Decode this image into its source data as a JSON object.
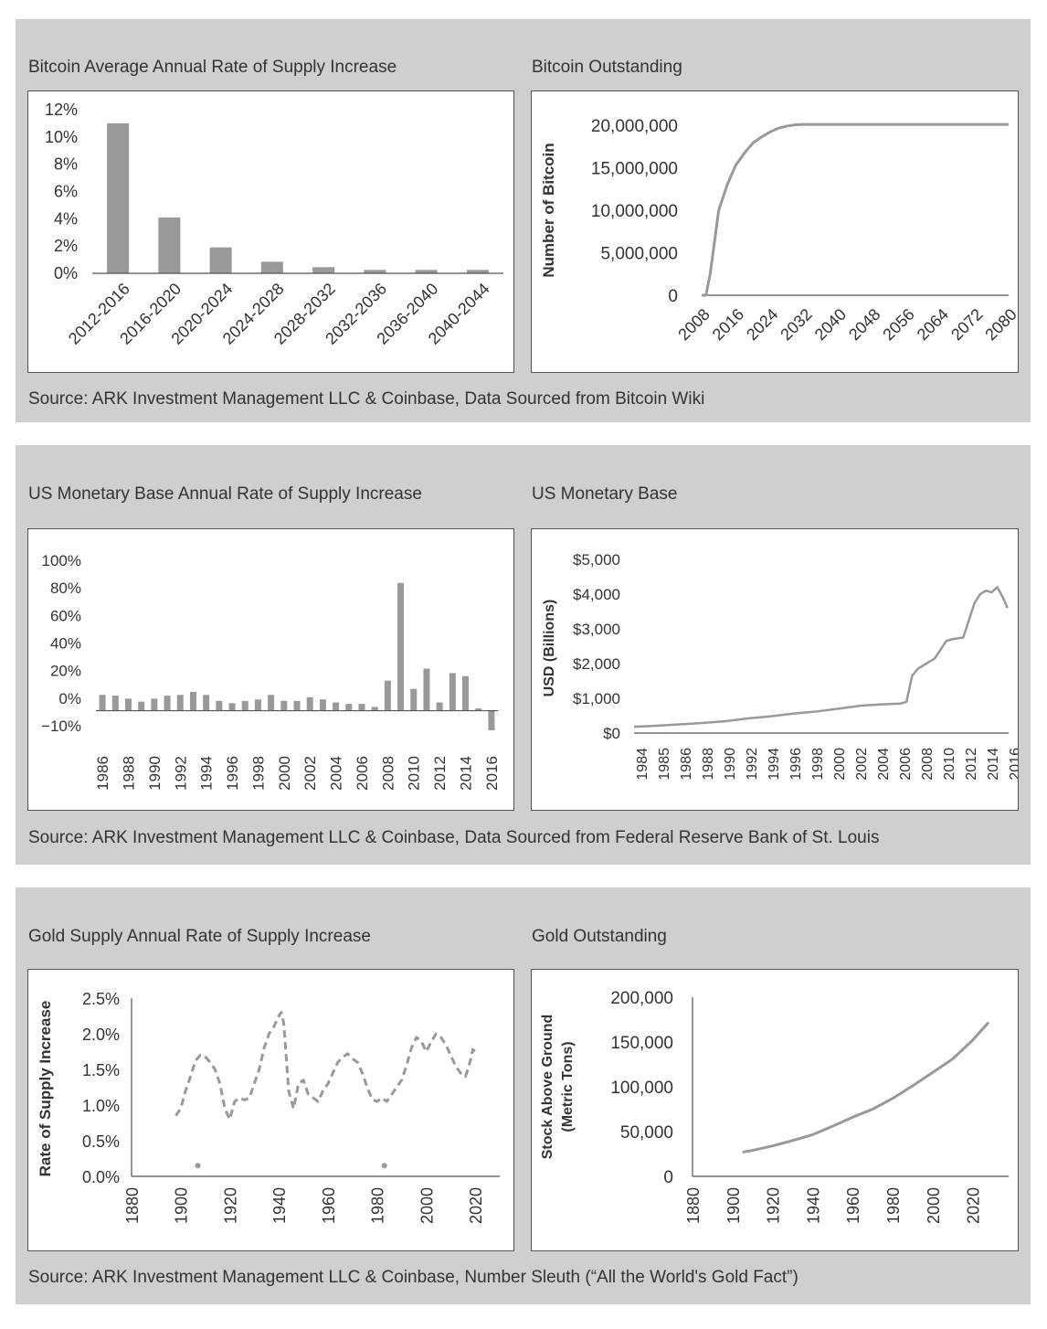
{
  "panels": [
    {
      "source": "Source: ARK Investment Management LLC & Coinbase, Data Sourced from Bitcoin Wiki"
    },
    {
      "source": "Source: ARK Investment Management LLC & Coinbase, Data Sourced from Federal Reserve Bank of St. Louis"
    },
    {
      "source": "Source: ARK Investment Management LLC & Coinbase, Number Sleuth (“All the World's Gold Fact”)"
    }
  ],
  "colors": {
    "panel_bg": "#cfcfcf",
    "series": "#999999",
    "axis": "#555555"
  },
  "chart_data": [
    {
      "type": "bar",
      "title": "Bitcoin Average Annual Rate of Supply Increase",
      "xlabel": "",
      "ylabel": "",
      "categories": [
        "2012-2016",
        "2016-2020",
        "2020-2024",
        "2024-2028",
        "2028-2032",
        "2032-2036",
        "2036-2040",
        "2040-2044"
      ],
      "values": [
        11.0,
        4.1,
        1.9,
        0.85,
        0.45,
        0.25,
        0.25,
        0.25
      ],
      "ylim": [
        0,
        12
      ],
      "yticks": [
        "0%",
        "2%",
        "4%",
        "6%",
        "8%",
        "10%",
        "12%"
      ],
      "grid": false
    },
    {
      "type": "line",
      "title": "Bitcoin Outstanding",
      "xlabel": "",
      "ylabel": "Number of Bitcoin",
      "x": [
        2008,
        2009,
        2010,
        2012,
        2014,
        2016,
        2018,
        2020,
        2022,
        2024,
        2026,
        2028,
        2030,
        2032,
        2040,
        2048,
        2056,
        2064,
        2072,
        2080
      ],
      "series": [
        {
          "values": [
            0,
            0,
            2500000,
            10000000,
            13000000,
            15300000,
            16700000,
            17900000,
            18600000,
            19200000,
            19650000,
            19900000,
            20050000,
            20100000,
            20100000,
            20100000,
            20100000,
            20100000,
            20100000,
            20100000
          ]
        }
      ],
      "xlim": [
        2008,
        2080
      ],
      "ylim": [
        0,
        20000000
      ],
      "xticks": [
        "2008",
        "2016",
        "2024",
        "2032",
        "2040",
        "2048",
        "2056",
        "2064",
        "2072",
        "2080"
      ],
      "yticks": [
        "0",
        "5,000,000",
        "10,000,000",
        "15,000,000",
        "20,000,000"
      ],
      "grid": false
    },
    {
      "type": "bar",
      "title": "US Monetary Base Annual Rate of Supply Increase",
      "xlabel": "",
      "ylabel": "",
      "categories": [
        1986,
        1987,
        1988,
        1989,
        1990,
        1991,
        1992,
        1993,
        1994,
        1995,
        1996,
        1997,
        1998,
        1999,
        2000,
        2001,
        2002,
        2003,
        2004,
        2005,
        2006,
        2007,
        2008,
        2009,
        2010,
        2011,
        2012,
        2013,
        2014,
        2015,
        2016
      ],
      "values": [
        10.5,
        10,
        8,
        6,
        8,
        10,
        10.5,
        12.5,
        10.5,
        6.5,
        5,
        6.5,
        7.5,
        10.5,
        6.5,
        6.5,
        9,
        7.5,
        5.5,
        4.5,
        4.5,
        2.5,
        20,
        85,
        14.5,
        28,
        5.5,
        25,
        23,
        1.5,
        -13
      ],
      "ylim": [
        -10,
        100
      ],
      "yticks": [
        "−10%",
        "0%",
        "20%",
        "40%",
        "60%",
        "80%",
        "100%"
      ],
      "xticks": [
        "1986",
        "1988",
        "1990",
        "1992",
        "1994",
        "1996",
        "1998",
        "2000",
        "2002",
        "2004",
        "2006",
        "2008",
        "2010",
        "2012",
        "2014",
        "2016"
      ],
      "grid": false
    },
    {
      "type": "line",
      "title": "US Monetary Base",
      "xlabel": "",
      "ylabel": "USD (Billions)",
      "x": [
        1984,
        1986,
        1988,
        1990,
        1992,
        1994,
        1996,
        1998,
        2000,
        2002,
        2004,
        2006,
        2007.5,
        2008,
        2008.5,
        2009,
        2010,
        2010.5,
        2011,
        2011.5,
        2012,
        2013,
        2013.5,
        2014,
        2014.5,
        2015,
        2015.5,
        2016,
        2016.5,
        2016.9
      ],
      "series": [
        {
          "values": [
            180,
            210,
            250,
            290,
            340,
            420,
            480,
            560,
            620,
            700,
            790,
            830,
            850,
            900,
            1650,
            1850,
            2050,
            2150,
            2400,
            2650,
            2700,
            2750,
            3250,
            3750,
            4000,
            4100,
            4050,
            4200,
            3900,
            3600
          ]
        }
      ],
      "xlim": [
        1984,
        2017
      ],
      "ylim": [
        0,
        5000
      ],
      "xticks": [
        "1984",
        "1985",
        "1986",
        "1988",
        "1990",
        "1992",
        "1994",
        "1996",
        "1998",
        "2000",
        "2002",
        "2004",
        "2006",
        "2008",
        "2010",
        "2012",
        "2014",
        "2016"
      ],
      "yticks": [
        "$0",
        "$1,000",
        "$2,000",
        "$3,000",
        "$4,000",
        "$5,000"
      ],
      "grid": false
    },
    {
      "type": "line",
      "title": "Gold Supply Annual Rate of Supply Increase",
      "xlabel": "",
      "ylabel": "Rate of Supply Increase",
      "x": [
        1898,
        1900,
        1902,
        1904,
        1906,
        1908,
        1910,
        1912,
        1914,
        1916,
        1918,
        1920,
        1922,
        1924,
        1926,
        1928,
        1930,
        1932,
        1934,
        1936,
        1938,
        1940,
        1941,
        1942,
        1944,
        1946,
        1948,
        1950,
        1952,
        1954,
        1956,
        1958,
        1960,
        1962,
        1964,
        1966,
        1968,
        1970,
        1972,
        1974,
        1976,
        1978,
        1980,
        1982,
        1984,
        1986,
        1988,
        1990,
        1992,
        1994,
        1996,
        1998,
        2000,
        2002,
        2004,
        2006,
        2008,
        2010,
        2012,
        2014,
        2016,
        2017,
        2018,
        2019,
        2020
      ],
      "series": [
        {
          "values": [
            0.85,
            0.95,
            1.2,
            1.4,
            1.62,
            1.7,
            1.68,
            1.6,
            1.5,
            1.3,
            0.95,
            0.8,
            1.05,
            1.1,
            1.07,
            1.1,
            1.3,
            1.5,
            1.8,
            2.0,
            2.1,
            2.25,
            2.3,
            2.15,
            1.2,
            0.95,
            1.3,
            1.35,
            1.15,
            1.1,
            1.05,
            1.2,
            1.3,
            1.45,
            1.6,
            1.67,
            1.72,
            1.65,
            1.6,
            1.45,
            1.25,
            1.08,
            1.05,
            1.1,
            1.05,
            1.15,
            1.25,
            1.35,
            1.55,
            1.8,
            1.95,
            1.9,
            1.75,
            1.88,
            2.0,
            1.95,
            1.85,
            1.7,
            1.55,
            1.45,
            1.4,
            1.5,
            1.62,
            1.78,
            1.75
          ]
        },
        {
          "points": [
            [
              1907,
              0.15
            ],
            [
              1983,
              0.15
            ]
          ]
        }
      ],
      "xlim": [
        1880,
        2030
      ],
      "ylim": [
        0,
        2.5
      ],
      "xticks": [
        "1880",
        "1900",
        "1920",
        "1940",
        "1960",
        "1980",
        "2000",
        "2020"
      ],
      "yticks": [
        "0.0%",
        "0.5%",
        "1.0%",
        "1.5%",
        "2.0%",
        "2.5%"
      ],
      "grid": false
    },
    {
      "type": "line",
      "title": "Gold Outstanding",
      "xlabel": "",
      "ylabel": "Stock Above Ground (Metric Tons)",
      "x": [
        1905,
        1910,
        1920,
        1930,
        1940,
        1950,
        1960,
        1970,
        1980,
        1990,
        2000,
        2010,
        2020,
        2028
      ],
      "series": [
        {
          "values": [
            27000,
            29000,
            34000,
            40000,
            46500,
            56000,
            66000,
            75000,
            87000,
            101000,
            116000,
            131000,
            152000,
            172000
          ]
        }
      ],
      "xlim": [
        1880,
        2038
      ],
      "ylim": [
        0,
        200000
      ],
      "xticks": [
        "1880",
        "1900",
        "1920",
        "1940",
        "1960",
        "1980",
        "2000",
        "2020"
      ],
      "yticks": [
        "0",
        "50,000",
        "100,000",
        "150,000",
        "200,000"
      ],
      "grid": false
    }
  ]
}
